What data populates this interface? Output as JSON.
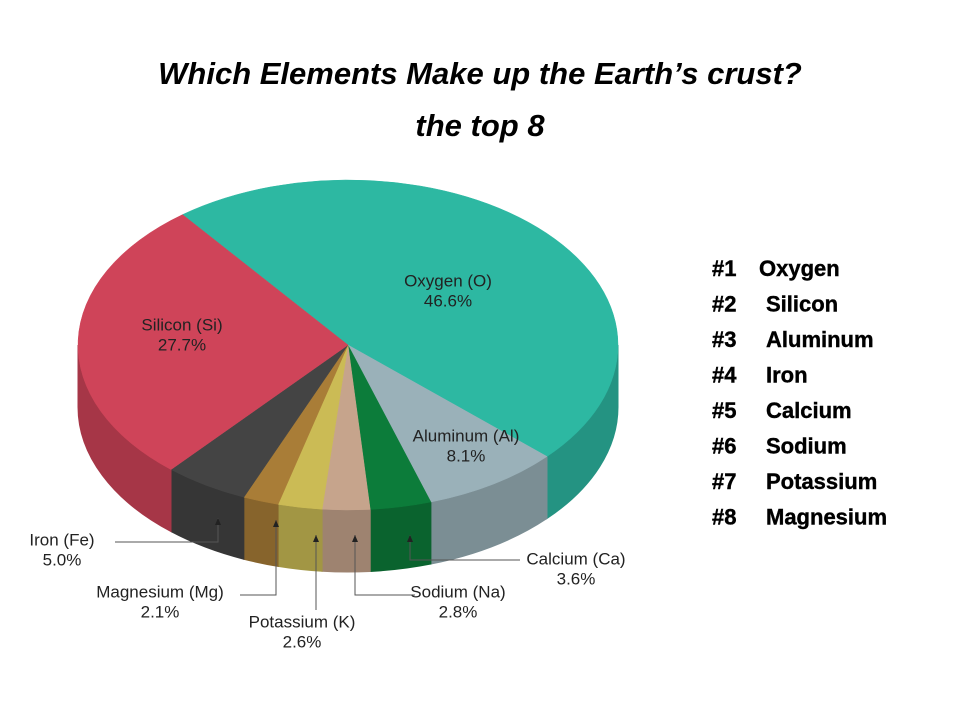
{
  "chart_data": {
    "type": "pie",
    "title": "Which Elements Make up the Earth’s crust?",
    "subtitle": "the top 8",
    "categories": [
      "Oxygen (O)",
      "Aluminum (Al)",
      "Calcium (Ca)",
      "Sodium (Na)",
      "Potassium (K)",
      "Magnesium (Mg)",
      "Iron (Fe)",
      "Silicon (Si)"
    ],
    "values": [
      46.6,
      8.1,
      3.6,
      2.8,
      2.6,
      2.1,
      5.0,
      27.7
    ],
    "value_labels": [
      "46.6%",
      "8.1%",
      "3.6%",
      "2.8%",
      "2.6%",
      "2.1%",
      "5.0%",
      "27.7%"
    ],
    "colors": [
      "#2db8a2",
      "#9ab1b9",
      "#0c7c3a",
      "#c6a48c",
      "#cbbb55",
      "#a97d37",
      "#444444",
      "#cf4459"
    ]
  },
  "ranking": [
    {
      "rank": "#1",
      "name": "Oxygen"
    },
    {
      "rank": "#2",
      "name": "Silicon"
    },
    {
      "rank": "#3",
      "name": "Aluminum"
    },
    {
      "rank": "#4",
      "name": "Iron"
    },
    {
      "rank": "#5",
      "name": "Calcium"
    },
    {
      "rank": "#6",
      "name": "Sodium"
    },
    {
      "rank": "#7",
      "name": "Potassium"
    },
    {
      "rank": "#8",
      "name": "Magnesium"
    }
  ]
}
